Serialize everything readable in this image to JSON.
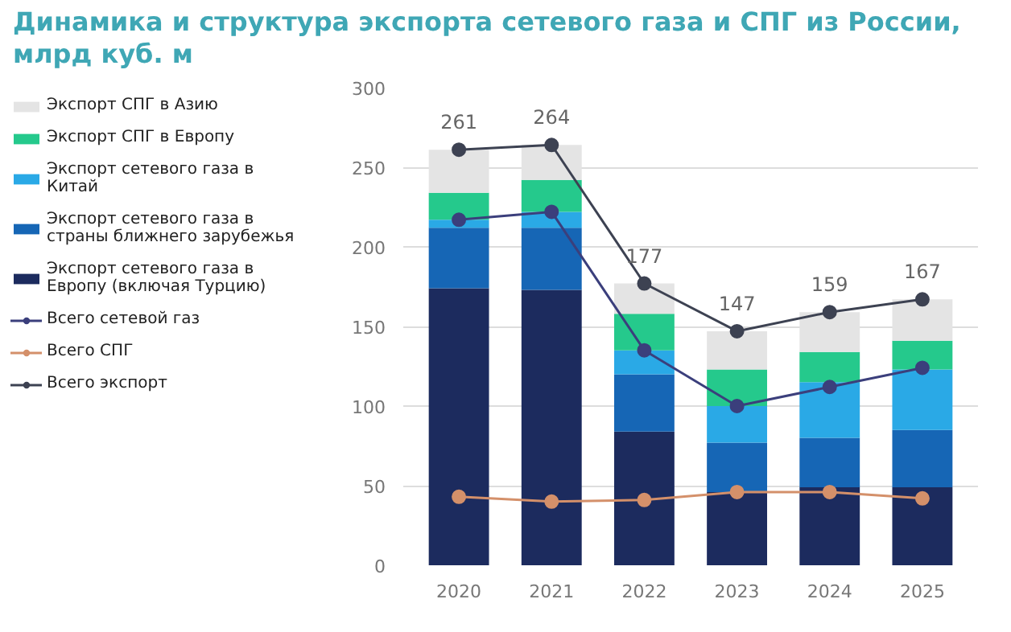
{
  "chart_data": {
    "type": "bar",
    "title": "Динамика и структура экспорта сетевого газа и СПГ из России, млрд куб. м",
    "categories": [
      "2020",
      "2021",
      "2022",
      "2023",
      "2024",
      "2025"
    ],
    "stacked": true,
    "ylim": [
      0,
      300
    ],
    "yticks": [
      0,
      50,
      100,
      150,
      200,
      250,
      300
    ],
    "grid": "y",
    "legend": "left",
    "marker": "circle",
    "series": [
      {
        "name": "Экспорт сетевого газа в Европу (включая Турцию)",
        "color": "#1c2b5e",
        "values": [
          174,
          173,
          84,
          46,
          49,
          49
        ]
      },
      {
        "name": "Экспорт сетевого газа в страны ближнего зарубежья",
        "color": "#1666b5",
        "values": [
          38,
          39,
          36,
          31,
          31,
          36
        ]
      },
      {
        "name": "Экспорт сетевого газа в Китай",
        "color": "#2aa9e6",
        "values": [
          5,
          10,
          15,
          23,
          35,
          38
        ]
      },
      {
        "name": "Экспорт СПГ в Европу",
        "color": "#25c98c",
        "values": [
          17,
          20,
          23,
          23,
          19,
          18
        ]
      },
      {
        "name": "Экспорт СПГ в Азию",
        "color": "#e4e4e4",
        "values": [
          27,
          22,
          19,
          24,
          25,
          26
        ]
      },
      {
        "name": "Всего сетевой газ",
        "type": "line",
        "color": "#3b3f7c",
        "values": [
          217,
          222,
          135,
          100,
          112,
          124
        ]
      },
      {
        "name": "Всего СПГ",
        "type": "line",
        "color": "#d4906a",
        "values": [
          43,
          40,
          41,
          46,
          46,
          42
        ]
      },
      {
        "name": "Всего экспорт",
        "type": "line",
        "color": "#3d4252",
        "values": [
          261,
          264,
          177,
          147,
          159,
          167
        ],
        "value_labels": [
          "261",
          "264",
          "177",
          "147",
          "159",
          "167"
        ]
      }
    ]
  }
}
